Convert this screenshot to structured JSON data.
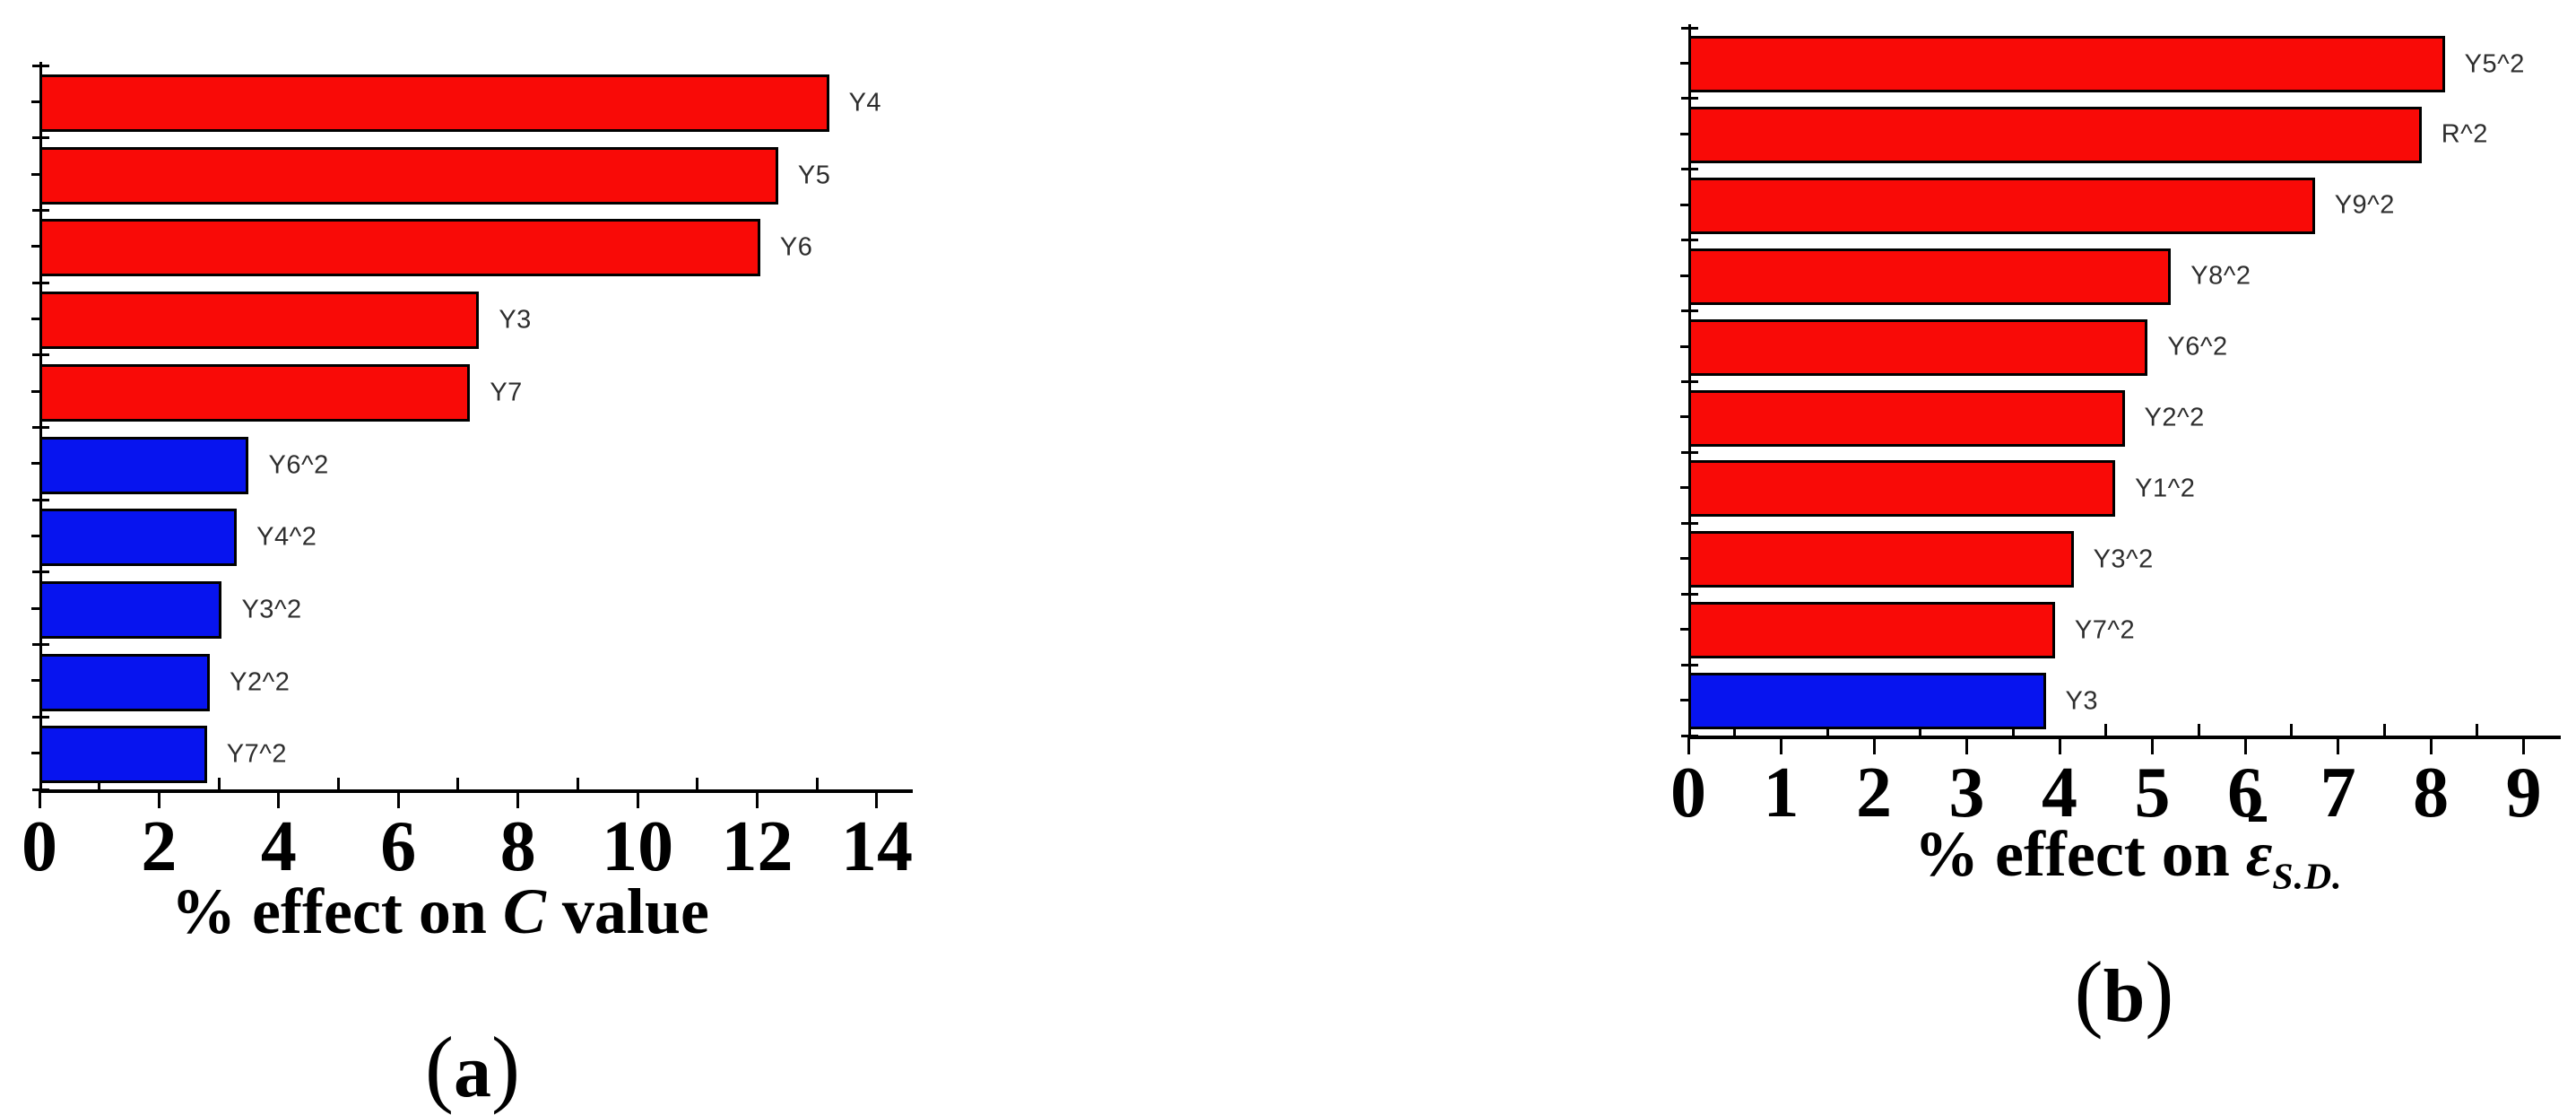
{
  "page": {
    "background_color": "#ffffff"
  },
  "palette": {
    "red": "#f90a07",
    "blue": "#0714ef",
    "axis_color": "#000000",
    "bar_border_color": "#000000",
    "bar_label_color": "#2e2e2e"
  },
  "chart_data": [
    {
      "id": "a",
      "type": "bar",
      "orientation": "horizontal",
      "title": {
        "prefix": "% effect on ",
        "symbol": "C",
        "symbol_overbar": false,
        "subscript": "",
        "suffix": " value"
      },
      "caption": {
        "open": "(",
        "letter": "a",
        "close": ")"
      },
      "categories": [
        "Y4",
        "Y5",
        "Y6",
        "Y3",
        "Y7",
        "Y6^2",
        "Y4^2",
        "Y3^2",
        "Y2^2",
        "Y7^2"
      ],
      "values": [
        13.2,
        12.35,
        12.05,
        7.35,
        7.2,
        3.5,
        3.3,
        3.05,
        2.85,
        2.8
      ],
      "bar_colors": [
        "red",
        "red",
        "red",
        "red",
        "red",
        "blue",
        "blue",
        "blue",
        "blue",
        "blue"
      ],
      "x_axis": {
        "min": 0,
        "max": 14.6,
        "major_step": 2,
        "minor_step": 1,
        "tick_labels": [
          "0",
          "2",
          "4",
          "6",
          "8",
          "10",
          "12",
          "14"
        ],
        "grid": false
      },
      "legend": "none"
    },
    {
      "id": "b",
      "type": "bar",
      "orientation": "horizontal",
      "title": {
        "prefix": "% effect on ",
        "symbol": "ε",
        "symbol_overbar": true,
        "subscript": "S.D.",
        "suffix": ""
      },
      "caption": {
        "open": "(",
        "letter": "b",
        "close": ")"
      },
      "categories": [
        "Y5^2",
        "R^2",
        "Y9^2",
        "Y8^2",
        "Y6^2",
        "Y2^2",
        "Y1^2",
        "Y3^2",
        "Y7^2",
        "Y3"
      ],
      "values": [
        8.15,
        7.9,
        6.75,
        5.2,
        4.95,
        4.7,
        4.6,
        4.15,
        3.95,
        3.85
      ],
      "bar_colors": [
        "red",
        "red",
        "red",
        "red",
        "red",
        "red",
        "red",
        "red",
        "red",
        "blue"
      ],
      "x_axis": {
        "min": 0,
        "max": 9.4,
        "major_step": 1,
        "minor_step": 0.5,
        "tick_labels": [
          "0",
          "1",
          "2",
          "3",
          "4",
          "5",
          "6",
          "7",
          "8",
          "9"
        ],
        "grid": false
      },
      "legend": "none"
    }
  ]
}
